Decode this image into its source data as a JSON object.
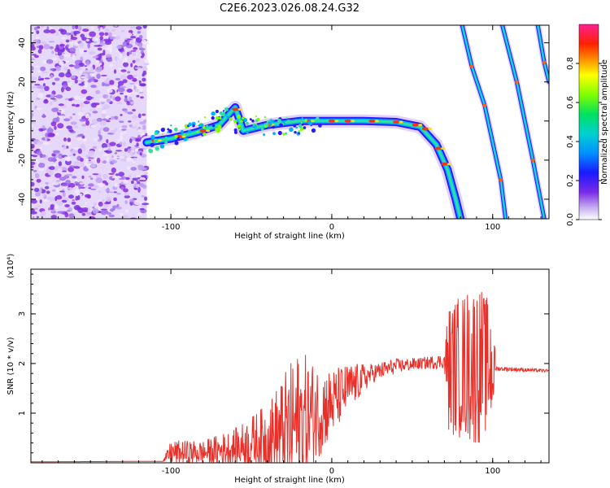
{
  "title": "C2E6.2023.026.08.24.G32",
  "colors": {
    "snr_line": "#e8302a",
    "sky": "#8a2be2",
    "track": "#00c8c8",
    "frame": "#000000"
  },
  "chart_data": [
    {
      "type": "heatmap",
      "xlabel": "Height of straight line (km)",
      "ylabel": "Frequency (Hz)",
      "xlim": [
        -187,
        135
      ],
      "ylim": [
        -50,
        49
      ],
      "xticks": [
        -100,
        0,
        100
      ],
      "yticks": [
        -40,
        -20,
        0,
        20,
        40
      ],
      "colorbar": {
        "label": "Normalized spectral amplitude",
        "range": [
          0.0,
          1.0
        ],
        "ticks": [
          "0.0",
          "0.2",
          "0.4",
          "0.6",
          "0.8"
        ]
      },
      "noise_region_x": [
        -187,
        -115
      ],
      "main_track": [
        {
          "x": -115,
          "y": -11
        },
        {
          "x": -100,
          "y": -9
        },
        {
          "x": -85,
          "y": -6
        },
        {
          "x": -70,
          "y": -2
        },
        {
          "x": -60,
          "y": 7
        },
        {
          "x": -55,
          "y": -5
        },
        {
          "x": -40,
          "y": -2
        },
        {
          "x": -20,
          "y": 0
        },
        {
          "x": 0,
          "y": 0
        },
        {
          "x": 20,
          "y": 0
        },
        {
          "x": 40,
          "y": -0.5
        },
        {
          "x": 55,
          "y": -3
        },
        {
          "x": 65,
          "y": -12
        },
        {
          "x": 72,
          "y": -25
        },
        {
          "x": 77,
          "y": -40
        },
        {
          "x": 80,
          "y": -50
        }
      ],
      "diagonal_tracks": [
        [
          {
            "x": 81,
            "y": 49
          },
          {
            "x": 87,
            "y": 28
          },
          {
            "x": 95,
            "y": 8
          },
          {
            "x": 105,
            "y": -30
          },
          {
            "x": 108,
            "y": -50
          }
        ],
        [
          {
            "x": 106,
            "y": 49
          },
          {
            "x": 115,
            "y": 20
          },
          {
            "x": 125,
            "y": -20
          },
          {
            "x": 132,
            "y": -50
          }
        ],
        [
          {
            "x": 128,
            "y": 49
          },
          {
            "x": 132,
            "y": 30
          },
          {
            "x": 135,
            "y": 20
          }
        ]
      ]
    },
    {
      "type": "line",
      "xlabel": "Height of straight line (km)",
      "ylabel": "SNR (10 * v/v)",
      "y_scale_note": "(x10⁴)",
      "xlim": [
        -187,
        135
      ],
      "ylim": [
        0,
        3.9
      ],
      "xticks": [
        -100,
        0,
        100
      ],
      "yticks": [
        1,
        2,
        3
      ],
      "envelope": [
        {
          "x": -187,
          "base": 0.02,
          "amp": 0.0
        },
        {
          "x": -105,
          "base": 0.03,
          "amp": 0.0
        },
        {
          "x": -100,
          "base": 0.2,
          "amp": 0.25
        },
        {
          "x": -80,
          "base": 0.2,
          "amp": 0.25
        },
        {
          "x": -60,
          "base": 0.3,
          "amp": 0.4
        },
        {
          "x": -40,
          "base": 0.5,
          "amp": 0.7
        },
        {
          "x": -30,
          "base": 0.6,
          "amp": 1.2
        },
        {
          "x": -20,
          "base": 0.8,
          "amp": 1.5
        },
        {
          "x": -10,
          "base": 1.0,
          "amp": 1.0
        },
        {
          "x": 0,
          "base": 1.2,
          "amp": 0.7
        },
        {
          "x": 10,
          "base": 1.5,
          "amp": 0.5
        },
        {
          "x": 25,
          "base": 1.8,
          "amp": 0.2
        },
        {
          "x": 40,
          "base": 1.95,
          "amp": 0.15
        },
        {
          "x": 55,
          "base": 2.0,
          "amp": 0.12
        },
        {
          "x": 70,
          "base": 2.05,
          "amp": 0.15
        },
        {
          "x": 72,
          "base": 1.9,
          "amp": 1.3
        },
        {
          "x": 90,
          "base": 2.0,
          "amp": 1.7
        },
        {
          "x": 100,
          "base": 1.95,
          "amp": 1.2
        },
        {
          "x": 102,
          "base": 1.9,
          "amp": 0.05
        },
        {
          "x": 135,
          "base": 1.85,
          "amp": 0.03
        }
      ]
    }
  ]
}
